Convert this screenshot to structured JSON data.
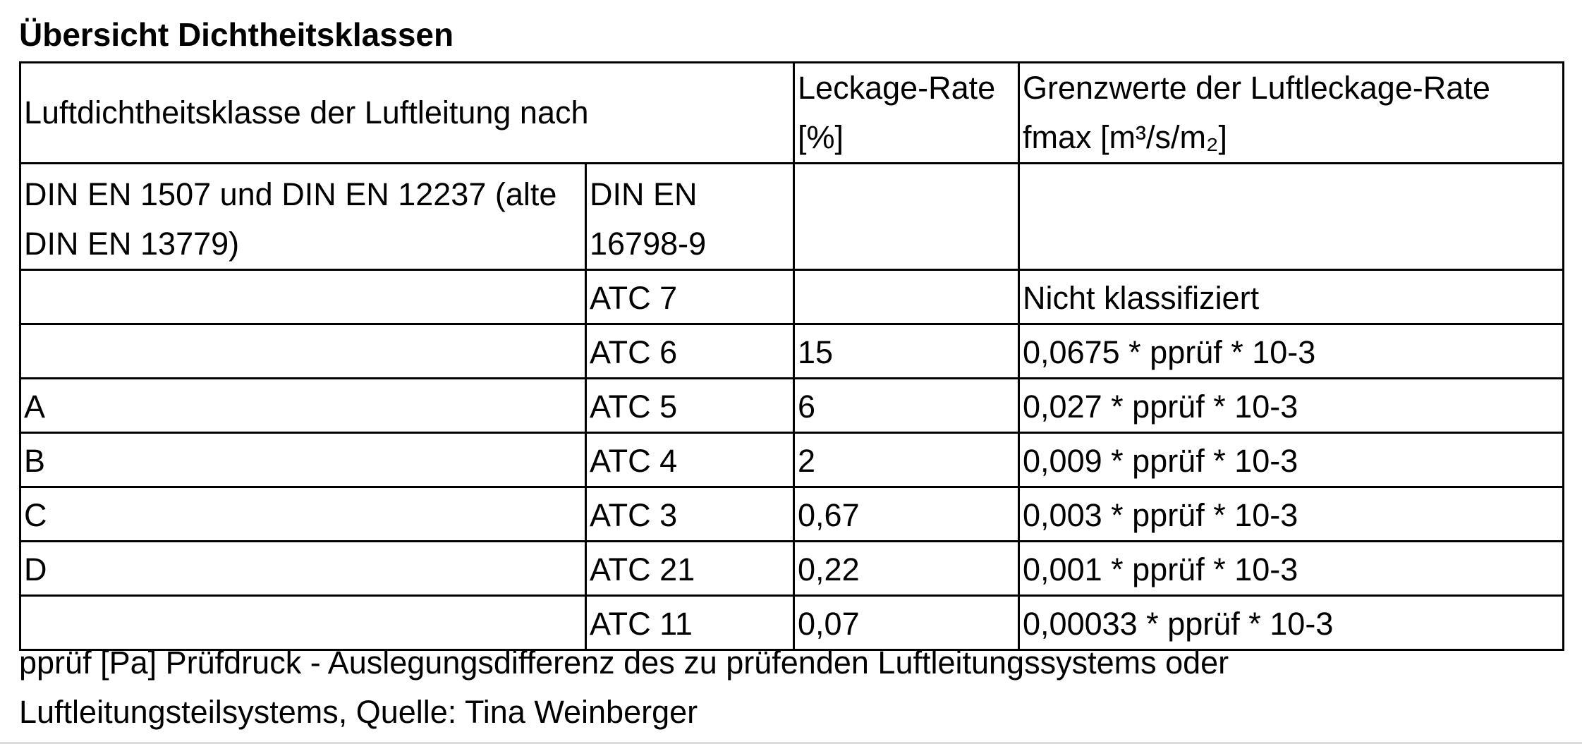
{
  "title": "Übersicht Dichtheitsklassen",
  "table": {
    "header": [
      "Luftdichtheitsklasse der Luftleitung nach",
      "Leckage-Rate [%]",
      "Grenzwerte der Luftleckage-Rate fmax [m³/s/m₂]"
    ],
    "rows": [
      [
        "DIN EN 1507 und DIN EN 12237 (alte DIN EN 13779)",
        "DIN EN 16798-9",
        null,
        null
      ],
      [
        null,
        "ATC 7",
        null,
        "Nicht klassifiziert"
      ],
      [
        null,
        "ATC 6",
        "15",
        "0,0675 * pprüf * 10-3"
      ],
      [
        "A",
        "ATC 5",
        "6",
        "0,027 * pprüf * 10-3"
      ],
      [
        "B",
        "ATC 4",
        "2",
        "0,009 * pprüf * 10-3"
      ],
      [
        "C",
        "ATC 3",
        "0,67",
        "0,003 * pprüf * 10-3"
      ],
      [
        "D",
        "ATC 21",
        "0,22",
        "0,001 * pprüf * 10-3"
      ],
      [
        null,
        "ATC 11",
        "0,07",
        "0,00033 * pprüf * 10-3"
      ]
    ]
  },
  "footnote": "pprüf [Pa] Prüfdruck - Auslegungsdifferenz des zu prüfenden Luftleitungssystems oder Luftleitungsteilsystems, Quelle: Tina Weinberger"
}
